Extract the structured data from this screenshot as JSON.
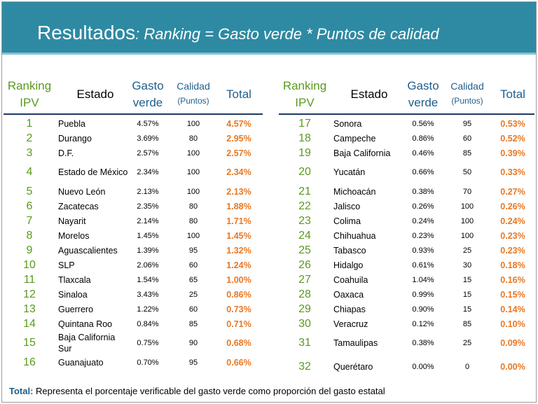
{
  "title": {
    "main": "Resultados",
    "colon": ":",
    "sub": " Ranking = Gasto verde * Puntos de calidad"
  },
  "headers": {
    "ranking_line1": "Ranking",
    "ranking_line2": "IPV",
    "estado": "Estado",
    "gasto_line1": "Gasto",
    "gasto_line2": "verde",
    "calidad_line1": "Calidad",
    "calidad_line2": "(Puntos)",
    "total": "Total"
  },
  "left_rows": [
    {
      "rank": "1",
      "estado": "Puebla",
      "gasto": "4.57%",
      "calidad": "100",
      "total": "4.57%"
    },
    {
      "rank": "2",
      "estado": "Durango",
      "gasto": "3.69%",
      "calidad": "80",
      "total": "2.95%"
    },
    {
      "rank": "3",
      "estado": "D.F.",
      "gasto": "2.57%",
      "calidad": "100",
      "total": "2.57%"
    },
    {
      "rank": "4",
      "estado": "Estado de México",
      "gasto": "2.34%",
      "calidad": "100",
      "total": "2.34%"
    },
    {
      "rank": "5",
      "estado": "Nuevo León",
      "gasto": "2.13%",
      "calidad": "100",
      "total": "2.13%"
    },
    {
      "rank": "6",
      "estado": "Zacatecas",
      "gasto": "2.35%",
      "calidad": "80",
      "total": "1.88%"
    },
    {
      "rank": "7",
      "estado": "Nayarit",
      "gasto": "2.14%",
      "calidad": "80",
      "total": "1.71%"
    },
    {
      "rank": "8",
      "estado": "Morelos",
      "gasto": "1.45%",
      "calidad": "100",
      "total": "1.45%"
    },
    {
      "rank": "9",
      "estado": "Aguascalientes",
      "gasto": "1.39%",
      "calidad": "95",
      "total": "1.32%"
    },
    {
      "rank": "10",
      "estado": "SLP",
      "gasto": "2.06%",
      "calidad": "60",
      "total": "1.24%"
    },
    {
      "rank": "11",
      "estado": "Tlaxcala",
      "gasto": "1.54%",
      "calidad": "65",
      "total": "1.00%"
    },
    {
      "rank": "12",
      "estado": "Sinaloa",
      "gasto": "3.43%",
      "calidad": "25",
      "total": "0.86%"
    },
    {
      "rank": "13",
      "estado": "Guerrero",
      "gasto": "1.22%",
      "calidad": "60",
      "total": "0.73%"
    },
    {
      "rank": "14",
      "estado": "Quintana Roo",
      "gasto": "0.84%",
      "calidad": "85",
      "total": "0.71%"
    },
    {
      "rank": "15",
      "estado": "Baja California Sur",
      "gasto": "0.75%",
      "calidad": "90",
      "total": "0.68%"
    },
    {
      "rank": "16",
      "estado": "Guanajuato",
      "gasto": "0.70%",
      "calidad": "95",
      "total": "0.66%"
    }
  ],
  "right_rows": [
    {
      "rank": "17",
      "estado": "Sonora",
      "gasto": "0.56%",
      "calidad": "95",
      "total": "0.53%"
    },
    {
      "rank": "18",
      "estado": "Campeche",
      "gasto": "0.86%",
      "calidad": "60",
      "total": "0.52%"
    },
    {
      "rank": "19",
      "estado": "Baja California",
      "gasto": "0.46%",
      "calidad": "85",
      "total": "0.39%"
    },
    {
      "rank": "20",
      "estado": "Yucatán",
      "gasto": "0.66%",
      "calidad": "50",
      "total": "0.33%"
    },
    {
      "rank": "21",
      "estado": "Michoacán",
      "gasto": "0.38%",
      "calidad": "70",
      "total": "0.27%"
    },
    {
      "rank": "22",
      "estado": "Jalisco",
      "gasto": "0.26%",
      "calidad": "100",
      "total": "0.26%"
    },
    {
      "rank": "23",
      "estado": "Colima",
      "gasto": "0.24%",
      "calidad": "100",
      "total": "0.24%"
    },
    {
      "rank": "24",
      "estado": "Chihuahua",
      "gasto": "0.23%",
      "calidad": "100",
      "total": "0.23%"
    },
    {
      "rank": "25",
      "estado": "Tabasco",
      "gasto": "0.93%",
      "calidad": "25",
      "total": "0.23%"
    },
    {
      "rank": "26",
      "estado": "Hidalgo",
      "gasto": "0.61%",
      "calidad": "30",
      "total": "0.18%"
    },
    {
      "rank": "27",
      "estado": "Coahuila",
      "gasto": "1.04%",
      "calidad": "15",
      "total": "0.16%"
    },
    {
      "rank": "28",
      "estado": "Oaxaca",
      "gasto": "0.99%",
      "calidad": "15",
      "total": "0.15%"
    },
    {
      "rank": "29",
      "estado": "Chiapas",
      "gasto": "0.90%",
      "calidad": "15",
      "total": "0.14%"
    },
    {
      "rank": "30",
      "estado": "Veracruz",
      "gasto": "0.12%",
      "calidad": "85",
      "total": "0.10%"
    },
    {
      "rank": "31",
      "estado": "Tamaulipas",
      "gasto": "0.38%",
      "calidad": "25",
      "total": "0.09%"
    },
    {
      "rank": "32",
      "estado": "Querétaro",
      "gasto": "0.00%",
      "calidad": "0",
      "total": "0.00%"
    }
  ],
  "footer": {
    "label": "Total:",
    "text": " Representa el porcentaje verificable del gasto verde como proporción del gasto estatal"
  },
  "colors": {
    "title_bar": "#2e8aa3",
    "rank": "#5a9a1e",
    "header_blue": "#1f5e8c",
    "total_orange": "#e87722"
  }
}
